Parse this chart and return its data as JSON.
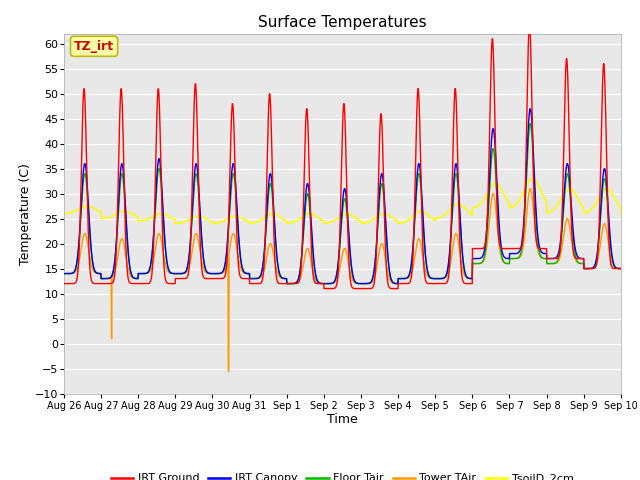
{
  "title": "Surface Temperatures",
  "xlabel": "Time",
  "ylabel": "Temperature (C)",
  "ylim": [
    -10,
    62
  ],
  "yticks": [
    -10,
    -5,
    0,
    5,
    10,
    15,
    20,
    25,
    30,
    35,
    40,
    45,
    50,
    55,
    60
  ],
  "annotation_label": "TZ_irt",
  "annotation_color": "#cc0000",
  "annotation_bg": "#ffffaa",
  "annotation_border": "#bbbb00",
  "plot_bg": "#e8e8e8",
  "legend_entries": [
    "IRT Ground",
    "IRT Canopy",
    "Floor Tair",
    "Tower TAir",
    "TsoilD_2cm"
  ],
  "legend_colors": [
    "#ff0000",
    "#0000ee",
    "#00bb00",
    "#ff9900",
    "#ffff00"
  ],
  "date_labels": [
    "Aug 26",
    "Aug 27",
    "Aug 28",
    "Aug 29",
    "Aug 30",
    "Aug 31",
    "Sep 1",
    "Sep 2",
    "Sep 3",
    "Sep 4",
    "Sep 5",
    "Sep 6",
    "Sep 7",
    "Sep 8",
    "Sep 9",
    "Sep 10"
  ],
  "n_days": 15,
  "spd": 144
}
